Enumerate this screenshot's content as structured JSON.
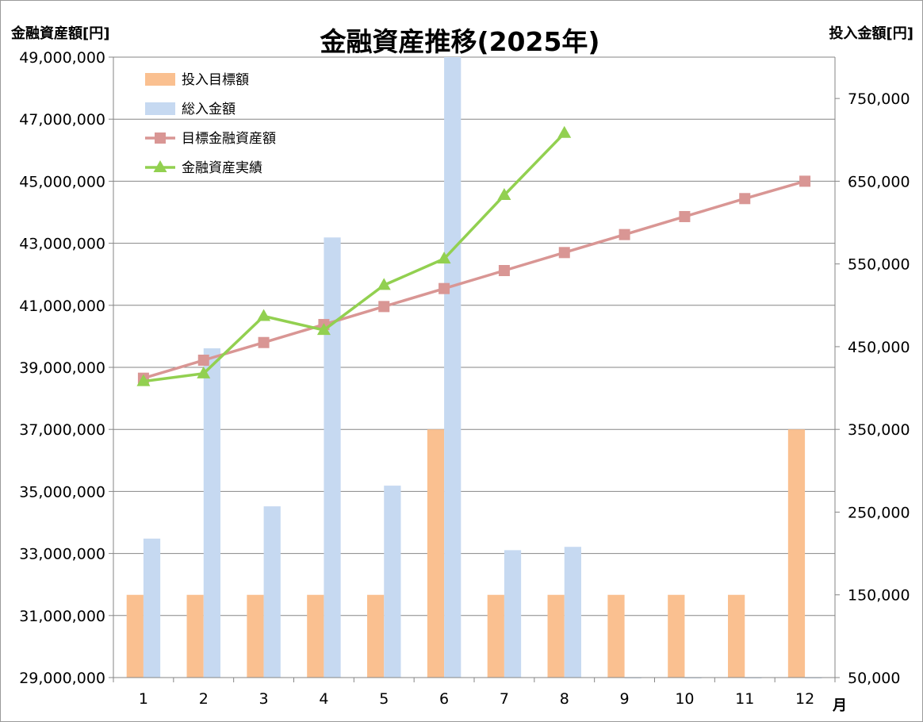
{
  "chart_data": {
    "type": "bar",
    "title": "金融資産推移(2025年)",
    "ylabel_left": "金融資産額[円]",
    "ylabel_right": "投入金額[円]",
    "xlabel": "月",
    "categories": [
      "1",
      "2",
      "3",
      "4",
      "5",
      "6",
      "7",
      "8",
      "9",
      "10",
      "11",
      "12"
    ],
    "ylim_left": [
      29000000,
      49000000
    ],
    "yticks_left": [
      "29,000,000",
      "31,000,000",
      "33,000,000",
      "35,000,000",
      "37,000,000",
      "39,000,000",
      "41,000,000",
      "43,000,000",
      "45,000,000",
      "47,000,000",
      "49,000,000"
    ],
    "ylim_right": [
      50000,
      800000
    ],
    "yticks_right": [
      "50,000",
      "150,000",
      "250,000",
      "350,000",
      "450,000",
      "550,000",
      "650,000",
      "750,000"
    ],
    "grid": true,
    "legend_position": "top-left",
    "series": [
      {
        "name": "投入目標額",
        "kind": "bar",
        "axis": "right",
        "color": "#FAC090",
        "values": [
          150000,
          150000,
          150000,
          150000,
          150000,
          350000,
          150000,
          150000,
          150000,
          150000,
          150000,
          350000
        ]
      },
      {
        "name": "総入金額",
        "kind": "bar",
        "axis": "right",
        "color": "#C6D9F1",
        "values": [
          218000,
          448000,
          257000,
          582000,
          282000,
          800000,
          204000,
          208000,
          50000,
          50000,
          50000,
          50000
        ]
      },
      {
        "name": "目標金融資産額",
        "kind": "line",
        "marker": "square",
        "axis": "left",
        "color": "#D99694",
        "values": [
          38650000,
          39230000,
          39800000,
          40380000,
          40960000,
          41540000,
          42120000,
          42700000,
          43280000,
          43860000,
          44440000,
          45000000
        ]
      },
      {
        "name": "金融資産実績",
        "kind": "line",
        "marker": "triangle",
        "axis": "left",
        "color": "#92D050",
        "values": [
          38550000,
          38800000,
          40650000,
          40200000,
          41650000,
          42500000,
          44550000,
          46550000,
          null,
          null,
          null,
          null
        ]
      }
    ]
  }
}
